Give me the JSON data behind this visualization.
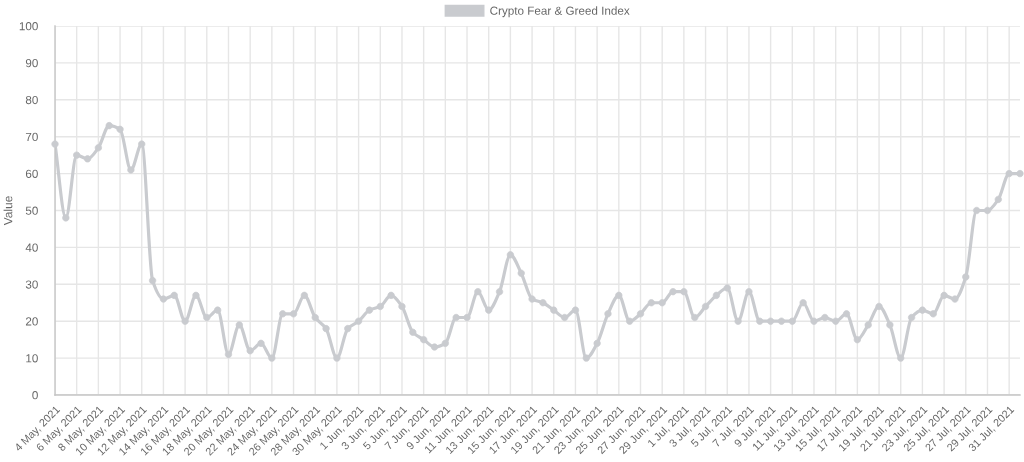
{
  "chart_data": {
    "type": "line",
    "ylabel": "Value",
    "categories": [
      "4 May, 2021",
      null,
      "6 May, 2021",
      null,
      "8 May, 2021",
      null,
      "10 May, 2021",
      null,
      "12 May, 2021",
      null,
      "14 May, 2021",
      null,
      "16 May, 2021",
      null,
      "18 May, 2021",
      null,
      "20 May, 2021",
      null,
      "22 May, 2021",
      null,
      "24 May, 2021",
      null,
      "26 May, 2021",
      null,
      "28 May, 2021",
      null,
      "30 May, 2021",
      null,
      "1 Jun, 2021",
      null,
      "3 Jun, 2021",
      null,
      "5 Jun, 2021",
      null,
      "7 Jun, 2021",
      null,
      "9 Jun, 2021",
      null,
      "11 Jun, 2021",
      null,
      "13 Jun, 2021",
      null,
      "15 Jun, 2021",
      null,
      "17 Jun, 2021",
      null,
      "19 Jun, 2021",
      null,
      "21 Jun, 2021",
      null,
      "23 Jun, 2021",
      null,
      "25 Jun, 2021",
      null,
      "27 Jun, 2021",
      null,
      "29 Jun, 2021",
      null,
      "1 Jul, 2021",
      null,
      "3 Jul, 2021",
      null,
      "5 Jul, 2021",
      null,
      "7 Jul, 2021",
      null,
      "9 Jul, 2021",
      null,
      "11 Jul, 2021",
      null,
      "13 Jul, 2021",
      null,
      "15 Jul, 2021",
      null,
      "17 Jul, 2021",
      null,
      "19 Jul, 2021",
      null,
      "21 Jul, 2021",
      null,
      "23 Jul, 2021",
      null,
      "25 Jul, 2021",
      null,
      "27 Jul, 2021",
      null,
      "29 Jul, 2021",
      null,
      "31 Jul, 2021",
      null
    ],
    "series": [
      {
        "name": "Crypto Fear & Greed Index",
        "color": "#c9cbcf",
        "values": [
          68,
          48,
          65,
          64,
          67,
          73,
          72,
          61,
          68,
          31,
          26,
          27,
          20,
          27,
          21,
          23,
          11,
          19,
          12,
          14,
          10,
          22,
          22,
          27,
          21,
          18,
          10,
          18,
          20,
          23,
          24,
          27,
          24,
          17,
          15,
          13,
          14,
          21,
          21,
          28,
          23,
          28,
          38,
          33,
          26,
          25,
          23,
          21,
          23,
          10,
          14,
          22,
          27,
          20,
          22,
          25,
          25,
          28,
          28,
          21,
          24,
          27,
          29,
          20,
          28,
          20,
          20,
          20,
          20,
          25,
          20,
          21,
          20,
          22,
          15,
          19,
          24,
          19,
          10,
          21,
          23,
          22,
          27,
          26,
          32,
          50,
          50,
          53,
          60,
          60
        ]
      }
    ],
    "ylim": [
      0,
      100
    ],
    "yticks": [
      0,
      10,
      20,
      30,
      40,
      50,
      60,
      70,
      80,
      90,
      100
    ],
    "grid": true,
    "legend": "top",
    "marker": "circle",
    "line_style": "solid"
  }
}
